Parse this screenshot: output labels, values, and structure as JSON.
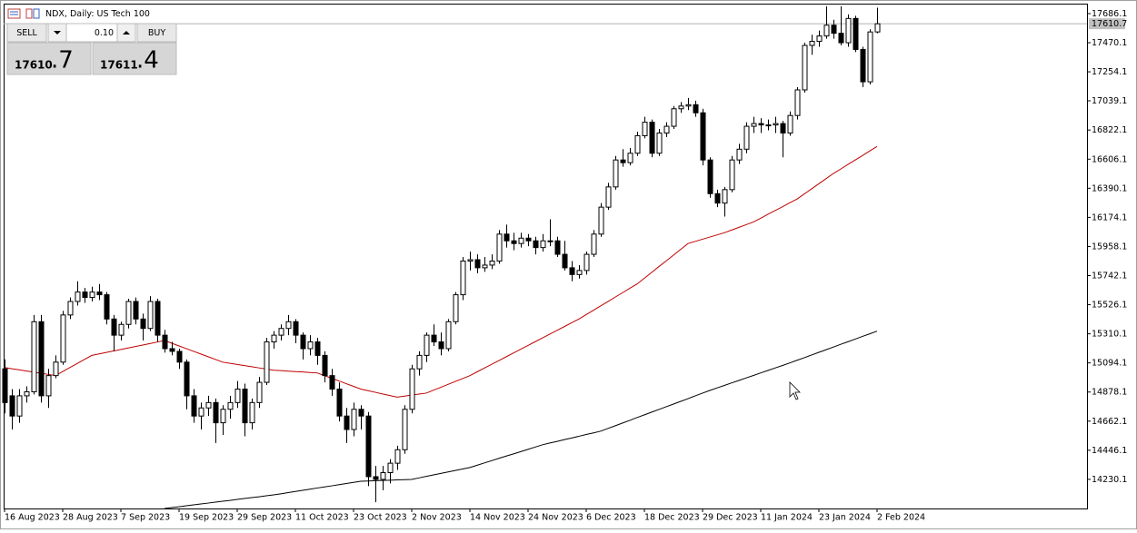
{
  "header": {
    "title": "NDX, Daily: US Tech 100"
  },
  "trade_panel": {
    "sell_label": "SELL",
    "buy_label": "BUY",
    "volume": "0.10",
    "sell_price_main": "17610",
    "sell_price_frac": ".7",
    "buy_price_main": "17611",
    "buy_price_frac": ".4"
  },
  "chart_data": {
    "type": "candlestick",
    "categories": [
      "16 Aug 2023",
      null,
      null,
      null,
      null,
      null,
      null,
      null,
      "28 Aug 2023",
      null,
      null,
      null,
      null,
      null,
      null,
      null,
      "7 Sep 2023",
      null,
      null,
      null,
      null,
      null,
      null,
      null,
      "19 Sep 2023",
      null,
      null,
      null,
      null,
      null,
      null,
      null,
      "29 Sep 2023",
      null,
      null,
      null,
      null,
      null,
      null,
      null,
      "11 Oct 2023",
      null,
      null,
      null,
      null,
      null,
      null,
      null,
      "23 Oct 2023",
      null,
      null,
      null,
      null,
      null,
      null,
      null,
      "2 Nov 2023",
      null,
      null,
      null,
      null,
      null,
      null,
      null,
      "14 Nov 2023",
      null,
      null,
      null,
      null,
      null,
      null,
      null,
      "24 Nov 2023",
      null,
      null,
      null,
      null,
      null,
      null,
      null,
      "6 Dec 2023",
      null,
      null,
      null,
      null,
      null,
      null,
      null,
      "18 Dec 2023",
      null,
      null,
      null,
      null,
      null,
      null,
      null,
      "29 Dec 2023",
      null,
      null,
      null,
      null,
      null,
      null,
      null,
      "11 Jan 2024",
      null,
      null,
      null,
      null,
      null,
      null,
      null,
      "23 Jan 2024",
      null,
      null,
      null,
      null,
      null,
      null,
      null,
      "2 Feb 2024"
    ],
    "open": [
      15050,
      14850,
      14700,
      14850,
      14880,
      15400,
      14850,
      15000,
      15100,
      15450,
      15550,
      15620,
      15580,
      15620,
      15600,
      15420,
      15300,
      15380,
      15550,
      15420,
      15350,
      15550,
      15300,
      15200,
      15180,
      15100,
      14850,
      14700,
      14760,
      14800,
      14650,
      14750,
      14800,
      14900,
      14650,
      14800,
      14950,
      15250,
      15300,
      15350,
      15400,
      15300,
      15200,
      15250,
      15150,
      15000,
      14900,
      14700,
      14600,
      14750,
      14700,
      14250,
      14230,
      14280,
      14350,
      14450,
      14750,
      15050,
      15150,
      15300,
      15250,
      15200,
      15400,
      15600,
      15850,
      15860,
      15800,
      15820,
      15850,
      16050,
      16000,
      15980,
      16020,
      16000,
      15950,
      16000,
      16000,
      15900,
      15800,
      15750,
      15780,
      15900,
      16050,
      16250,
      16400,
      16600,
      16580,
      16650,
      16780,
      16880,
      16650,
      16800,
      16850,
      16980,
      17000,
      17010,
      16950,
      16600,
      16350,
      16280,
      16380,
      16600,
      16680,
      16850,
      16870,
      16860,
      16860,
      16870,
      16800,
      16930,
      17120,
      17450,
      17480,
      17520,
      17600,
      17540,
      17470,
      17650,
      17420,
      17180,
      17550
    ],
    "high": [
      15120,
      14900,
      14900,
      14920,
      15450,
      15450,
      15050,
      15150,
      15480,
      15580,
      15700,
      15650,
      15660,
      15680,
      15620,
      15450,
      15400,
      15570,
      15580,
      15460,
      15590,
      15570,
      15340,
      15250,
      15200,
      15120,
      14900,
      14800,
      14850,
      14830,
      14780,
      14850,
      14960,
      14940,
      14830,
      14990,
      15280,
      15330,
      15380,
      15450,
      15420,
      15320,
      15300,
      15280,
      15180,
      15050,
      14950,
      14760,
      14800,
      14780,
      14730,
      14330,
      14330,
      14380,
      14480,
      14780,
      15080,
      15180,
      15320,
      15380,
      15320,
      15420,
      15620,
      15880,
      15920,
      15900,
      15880,
      15900,
      16080,
      16120,
      16060,
      16060,
      16050,
      16030,
      16050,
      16160,
      16030,
      16000,
      15850,
      15820,
      15920,
      16080,
      16280,
      16430,
      16630,
      16680,
      16690,
      16810,
      16920,
      16900,
      16830,
      16880,
      17000,
      17030,
      17060,
      17040,
      16980,
      16620,
      16380,
      16400,
      16630,
      16720,
      16880,
      16920,
      16910,
      16900,
      16920,
      16890,
      16960,
      17140,
      17470,
      17530,
      17560,
      17740,
      17640,
      17740,
      17680,
      17670,
      17440,
      17570,
      17730
    ],
    "low": [
      14720,
      14600,
      14650,
      14800,
      14860,
      14800,
      14760,
      14980,
      15080,
      15420,
      15520,
      15540,
      15550,
      15560,
      15380,
      15180,
      15260,
      15350,
      15380,
      15260,
      15330,
      15250,
      15170,
      15150,
      15050,
      14750,
      14650,
      14600,
      14700,
      14500,
      14560,
      14680,
      14760,
      14550,
      14600,
      14760,
      14930,
      15200,
      15260,
      15300,
      15240,
      15120,
      15150,
      15080,
      14950,
      14850,
      14660,
      14500,
      14550,
      14600,
      14180,
      14060,
      14150,
      14200,
      14300,
      14420,
      14720,
      15000,
      15100,
      15220,
      15150,
      15180,
      15380,
      15560,
      15780,
      15760,
      15770,
      15790,
      15830,
      15950,
      15930,
      15950,
      15960,
      15900,
      15920,
      15960,
      15880,
      15780,
      15700,
      15720,
      15750,
      15880,
      16030,
      16230,
      16380,
      16550,
      16560,
      16630,
      16760,
      16620,
      16630,
      16770,
      16830,
      16950,
      16970,
      16920,
      16560,
      16320,
      16250,
      16180,
      16360,
      16570,
      16650,
      16800,
      16800,
      16820,
      16800,
      16620,
      16780,
      16900,
      17100,
      17380,
      17440,
      17500,
      17500,
      17450,
      17440,
      17400,
      17140,
      17160,
      17540
    ],
    "close": [
      14800,
      14700,
      14850,
      14880,
      15400,
      14850,
      15000,
      15100,
      15450,
      15550,
      15620,
      15580,
      15620,
      15600,
      15420,
      15300,
      15380,
      15550,
      15420,
      15350,
      15550,
      15300,
      15200,
      15180,
      15100,
      14850,
      14700,
      14760,
      14800,
      14650,
      14750,
      14800,
      14900,
      14650,
      14800,
      14950,
      15250,
      15300,
      15350,
      15400,
      15300,
      15200,
      15250,
      15150,
      15000,
      14900,
      14700,
      14600,
      14750,
      14700,
      14250,
      14230,
      14280,
      14350,
      14450,
      14750,
      15050,
      15150,
      15300,
      15250,
      15200,
      15400,
      15600,
      15850,
      15860,
      15800,
      15820,
      15850,
      16050,
      16000,
      15980,
      16020,
      16000,
      15950,
      16000,
      16000,
      15900,
      15800,
      15750,
      15780,
      15900,
      16050,
      16250,
      16400,
      16600,
      16580,
      16650,
      16780,
      16880,
      16650,
      16800,
      16850,
      16980,
      17000,
      17010,
      16950,
      16600,
      16350,
      16280,
      16380,
      16600,
      16680,
      16850,
      16870,
      16860,
      16860,
      16870,
      16800,
      16930,
      17120,
      17450,
      17480,
      17520,
      17600,
      17540,
      17470,
      17650,
      17420,
      17180,
      17550,
      17610.7
    ],
    "bull_color": "#ffffff",
    "bear_color": "#000000",
    "lines": [
      {
        "color": "#c00000",
        "values": [
          15060,
          15051,
          15043,
          15034,
          15026,
          15017,
          15009,
          15000,
          15030,
          15060,
          15090,
          15120,
          15150,
          15161,
          15172,
          15183,
          15194,
          15205,
          15216,
          15227,
          15238,
          15249,
          15260,
          15240,
          15220,
          15200,
          15180,
          15160,
          15140,
          15120,
          15100,
          15091,
          15083,
          15074,
          15066,
          15057,
          15049,
          15040,
          15037,
          15033,
          15030,
          15027,
          15023,
          15020,
          15000,
          14980,
          14960,
          14940,
          14920,
          14900,
          14888,
          14876,
          14864,
          14852,
          14840,
          14848,
          14855,
          14863,
          14870,
          14892,
          14913,
          14935,
          14957,
          14978,
          15000,
          15028,
          15056,
          15084,
          15112,
          15140,
          15168,
          15196,
          15224,
          15252,
          15280,
          15308,
          15336,
          15364,
          15392,
          15420,
          15453,
          15485,
          15518,
          15550,
          15583,
          15615,
          15648,
          15680,
          15723,
          15766,
          15809,
          15851,
          15894,
          15937,
          15980,
          15996,
          16012,
          16028,
          16044,
          16060,
          16080,
          16100,
          16120,
          16140,
          16168,
          16197,
          16225,
          16253,
          16282,
          16310,
          16348,
          16386,
          16424,
          16462,
          16500,
          16533,
          16567,
          16600,
          16633,
          16667,
          16700
        ]
      },
      {
        "color": "#000000",
        "values": [
          null,
          null,
          null,
          null,
          null,
          null,
          null,
          null,
          null,
          null,
          null,
          null,
          null,
          null,
          null,
          null,
          null,
          null,
          null,
          null,
          null,
          null,
          14014,
          14021,
          14027,
          14034,
          14041,
          14048,
          14054,
          14061,
          14068,
          14074,
          14081,
          14088,
          14095,
          14101,
          14108,
          14115,
          14123,
          14132,
          14140,
          14149,
          14157,
          14166,
          14174,
          14182,
          14191,
          14199,
          14208,
          14216,
          14218,
          14220,
          14222,
          14224,
          14226,
          14228,
          14230,
          14241,
          14252,
          14263,
          14274,
          14285,
          14296,
          14307,
          14318,
          14335,
          14352,
          14369,
          14386,
          14403,
          14419,
          14436,
          14453,
          14470,
          14487,
          14500,
          14512,
          14525,
          14537,
          14550,
          14563,
          14575,
          14588,
          14608,
          14628,
          14648,
          14668,
          14689,
          14709,
          14729,
          14749,
          14769,
          14789,
          14809,
          14829,
          14850,
          14870,
          14890,
          14909,
          14927,
          14946,
          14964,
          14983,
          15001,
          15020,
          15038,
          15057,
          15075,
          15094,
          15114,
          15133,
          15153,
          15173,
          15192,
          15212,
          15232,
          15251,
          15271,
          15291,
          15310,
          15330
        ]
      }
    ],
    "last_price": 17610.7,
    "ylim": [
      14014,
      17760
    ],
    "yticks": [
      17686.1,
      17470.1,
      17254.1,
      17039.1,
      16822.1,
      16606.1,
      16390.1,
      16174.1,
      15958.1,
      15742.1,
      15526.1,
      15310.1,
      15094.1,
      14878.1,
      14662.1,
      14446.1,
      14230.1
    ],
    "grid": false
  }
}
